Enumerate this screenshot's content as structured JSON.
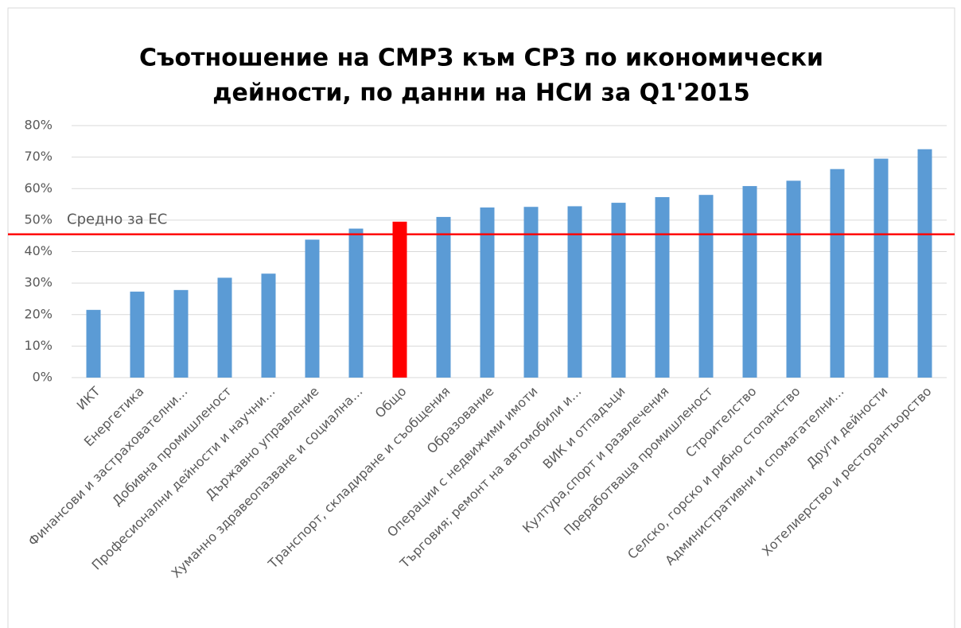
{
  "chart_data": {
    "type": "bar",
    "title": [
      "Съотношение на СМРЗ към СРЗ по икономически",
      "дейности, по данни на НСИ за Q1'2015"
    ],
    "categories": [
      "ИКТ",
      "Енергетика",
      "Финансови и застрахователни…",
      "Добивна промишленост",
      "Професионални дейности и научни…",
      "Държавно управление",
      "Хуманно здравеопазване и социална…",
      "Общо",
      "Транспорт, складиране и съобщения",
      "Образование",
      "Операции с недвижими имоти",
      "Търговия; ремонт на автомобили и…",
      "ВИК и отпадъци",
      "Култура,спорт и развлечения",
      "Преработваща промишленост",
      "Строителство",
      "Селско, горско и рибно стопанство",
      "Административни и спомагателни…",
      "Други дейности",
      "Хотелиерство и ресторантьорство"
    ],
    "values": [
      21.5,
      27.3,
      27.8,
      31.7,
      33,
      43.8,
      47.3,
      49.5,
      51,
      54,
      54.2,
      54.4,
      55.5,
      57.3,
      58,
      60.8,
      62.5,
      66.2,
      69.5,
      72.5
    ],
    "colors": [
      "#5b9bd5",
      "#5b9bd5",
      "#5b9bd5",
      "#5b9bd5",
      "#5b9bd5",
      "#5b9bd5",
      "#5b9bd5",
      "#ff0000",
      "#5b9bd5",
      "#5b9bd5",
      "#5b9bd5",
      "#5b9bd5",
      "#5b9bd5",
      "#5b9bd5",
      "#5b9bd5",
      "#5b9bd5",
      "#5b9bd5",
      "#5b9bd5",
      "#5b9bd5",
      "#5b9bd5"
    ],
    "ylim": [
      0,
      80
    ],
    "yticks": [
      {
        "value": 0,
        "label": "0%"
      },
      {
        "value": 10,
        "label": "10%"
      },
      {
        "value": 20,
        "label": "20%"
      },
      {
        "value": 30,
        "label": "30%"
      },
      {
        "value": 40,
        "label": "40%"
      },
      {
        "value": 50,
        "label": "50%"
      },
      {
        "value": 60,
        "label": "60%"
      },
      {
        "value": 70,
        "label": "70%"
      },
      {
        "value": 80,
        "label": "80%"
      }
    ],
    "grid": true,
    "reference_line": {
      "value": 45.5,
      "label": "Средно за ЕС",
      "color": "#ff0000"
    }
  }
}
